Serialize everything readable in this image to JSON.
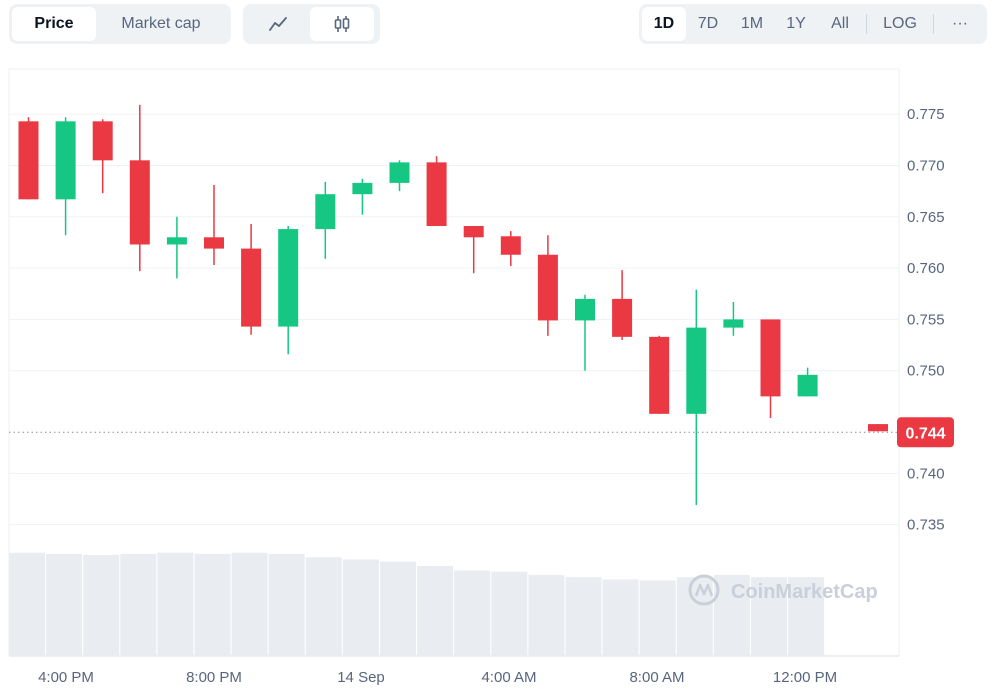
{
  "toolbar": {
    "metric_tabs": [
      {
        "label": "Price",
        "active": true
      },
      {
        "label": "Market cap",
        "active": false
      }
    ],
    "chart_types": [
      {
        "icon": "line-chart-icon",
        "active": false
      },
      {
        "icon": "candlestick-icon",
        "active": true
      }
    ],
    "ranges": [
      {
        "label": "1D",
        "active": true
      },
      {
        "label": "7D",
        "active": false
      },
      {
        "label": "1M",
        "active": false
      },
      {
        "label": "1Y",
        "active": false
      },
      {
        "label": "All",
        "active": false
      }
    ],
    "log_label": "LOG",
    "more_label": "···"
  },
  "watermark": "CoinMarketCap",
  "colors": {
    "up": "#16c784",
    "down": "#ea3943",
    "volume": "#e9ecf0",
    "grid": "#eff2f5"
  },
  "chart_data": {
    "type": "candlestick",
    "y_ticks": [
      "0.775",
      "0.770",
      "0.765",
      "0.760",
      "0.755",
      "0.750",
      "0.740",
      "0.735"
    ],
    "x_ticks": [
      "4:00 PM",
      "8:00 PM",
      "14 Sep",
      "4:00 AM",
      "8:00 AM",
      "12:00 PM"
    ],
    "ylim": [
      0.7338,
      0.7793
    ],
    "current_price": 0.744,
    "current_price_label": "0.744",
    "candles": [
      {
        "o": 0.7743,
        "h": 0.7747,
        "l": 0.7667,
        "c": 0.7667
      },
      {
        "o": 0.7667,
        "h": 0.7747,
        "l": 0.7632,
        "c": 0.7743
      },
      {
        "o": 0.7743,
        "h": 0.7745,
        "l": 0.7673,
        "c": 0.7705
      },
      {
        "o": 0.7705,
        "h": 0.7759,
        "l": 0.7597,
        "c": 0.7623
      },
      {
        "o": 0.7623,
        "h": 0.765,
        "l": 0.759,
        "c": 0.763
      },
      {
        "o": 0.763,
        "h": 0.7681,
        "l": 0.7603,
        "c": 0.7619
      },
      {
        "o": 0.7619,
        "h": 0.7643,
        "l": 0.7535,
        "c": 0.7543
      },
      {
        "o": 0.7543,
        "h": 0.7641,
        "l": 0.7516,
        "c": 0.7638
      },
      {
        "o": 0.7638,
        "h": 0.7684,
        "l": 0.7609,
        "c": 0.7672
      },
      {
        "o": 0.7672,
        "h": 0.7687,
        "l": 0.7652,
        "c": 0.7683
      },
      {
        "o": 0.7683,
        "h": 0.7705,
        "l": 0.7675,
        "c": 0.7703
      },
      {
        "o": 0.7703,
        "h": 0.7709,
        "l": 0.7641,
        "c": 0.7641
      },
      {
        "o": 0.7641,
        "h": 0.7641,
        "l": 0.7595,
        "c": 0.763
      },
      {
        "o": 0.7631,
        "h": 0.7636,
        "l": 0.7602,
        "c": 0.7613
      },
      {
        "o": 0.7613,
        "h": 0.7632,
        "l": 0.7534,
        "c": 0.7549
      },
      {
        "o": 0.7549,
        "h": 0.7574,
        "l": 0.75,
        "c": 0.757
      },
      {
        "o": 0.757,
        "h": 0.7598,
        "l": 0.753,
        "c": 0.7533
      },
      {
        "o": 0.7533,
        "h": 0.7534,
        "l": 0.7458,
        "c": 0.7458
      },
      {
        "o": 0.7458,
        "h": 0.7579,
        "l": 0.7369,
        "c": 0.7542
      },
      {
        "o": 0.7542,
        "h": 0.7567,
        "l": 0.7534,
        "c": 0.755
      },
      {
        "o": 0.755,
        "h": 0.755,
        "l": 0.7454,
        "c": 0.7475
      },
      {
        "o": 0.7475,
        "h": 0.7503,
        "l": 0.7475,
        "c": 0.7496
      },
      {
        "o": 0.7448,
        "h": 0.7448,
        "l": 0.7441,
        "c": 0.7441
      }
    ],
    "volume": [
      0.93,
      0.92,
      0.91,
      0.92,
      0.93,
      0.92,
      0.93,
      0.92,
      0.89,
      0.87,
      0.85,
      0.81,
      0.77,
      0.76,
      0.73,
      0.71,
      0.69,
      0.68,
      0.71,
      0.73,
      0.71,
      0.71
    ]
  }
}
